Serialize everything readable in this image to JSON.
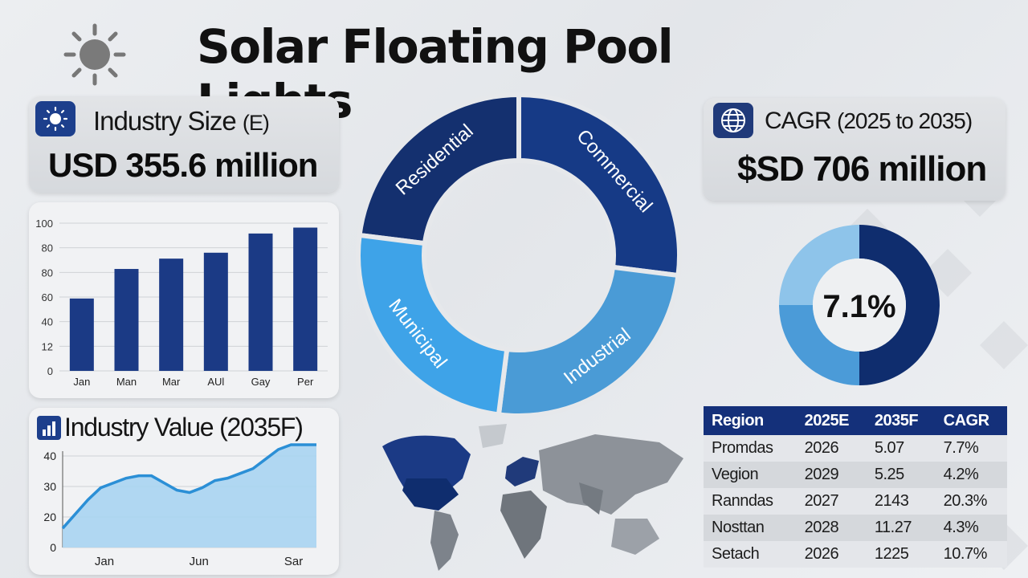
{
  "title": "Solar Floating Pool Lights",
  "icons": {
    "sun": "sun-icon",
    "industry_size": "sun-badge-icon",
    "cagr": "globe-icon",
    "industry_value": "bar-chart-icon"
  },
  "colors": {
    "navy": "#1b3a85",
    "dark_navy": "#0f2d6e",
    "mid_blue": "#4a90d9",
    "light_blue": "#3fa2e3",
    "sky": "#8ec4ea",
    "area_fill": "#a9d4f2",
    "line": "#2b8fd6"
  },
  "industry_size": {
    "label": "Industry Size",
    "suffix": "(E)",
    "value": "USD 355.6 million"
  },
  "cagr": {
    "label": "CAGR",
    "range": "(2025 to 2035)",
    "value": "$SD 706 million",
    "percent_label": "7.1%"
  },
  "industry_value": {
    "label": "Industry Value (2035F)"
  },
  "region_table": {
    "headers": [
      "Region",
      "2025E",
      "2035F",
      "CAGR"
    ],
    "rows": [
      [
        "Promdas",
        "2026",
        "5.07",
        "7.7%"
      ],
      [
        "Vegion",
        "2029",
        "5.25",
        "4.2%"
      ],
      [
        "Ranndas",
        "2027",
        "2143",
        "20.3%"
      ],
      [
        "Nosttan",
        "2028",
        "11.27",
        "4.3%"
      ],
      [
        "Setach",
        "2026",
        "1225",
        "10.7%"
      ]
    ]
  },
  "chart_data": [
    {
      "type": "bar",
      "categories": [
        "Jan",
        "Man",
        "Mar",
        "AUl",
        "Gay",
        "Per"
      ],
      "values": [
        49,
        69,
        76,
        80,
        93,
        97
      ],
      "y_tick_labels": [
        "0",
        "12",
        "40",
        "60",
        "80",
        "80",
        "100"
      ],
      "ylim": [
        0,
        100
      ],
      "grid": true
    },
    {
      "type": "pie",
      "labels": [
        "Residential",
        "Commercial",
        "Industrial",
        "Municipal"
      ],
      "values": [
        23,
        27,
        25,
        25
      ],
      "donut": true
    },
    {
      "type": "pie",
      "center_label": "7.1%",
      "values": [
        50,
        25,
        25
      ],
      "donut": true
    },
    {
      "type": "area",
      "x_tick_labels": [
        "Jan",
        "Jun",
        "Sar"
      ],
      "y_tick_labels": [
        "0",
        "20",
        "30",
        "40"
      ],
      "x": [
        0,
        0.5,
        1,
        1.5,
        2,
        2.5,
        3,
        3.5,
        4,
        4.5,
        5,
        5.5,
        6,
        6.5,
        7,
        7.5,
        8,
        8.5,
        9,
        9.5,
        10
      ],
      "values": [
        8,
        14,
        20,
        25,
        27,
        29,
        30,
        30,
        27,
        24,
        23,
        25,
        28,
        29,
        31,
        33,
        37,
        41,
        43,
        43,
        43
      ],
      "ylim": [
        0,
        45
      ],
      "grid": true
    }
  ]
}
